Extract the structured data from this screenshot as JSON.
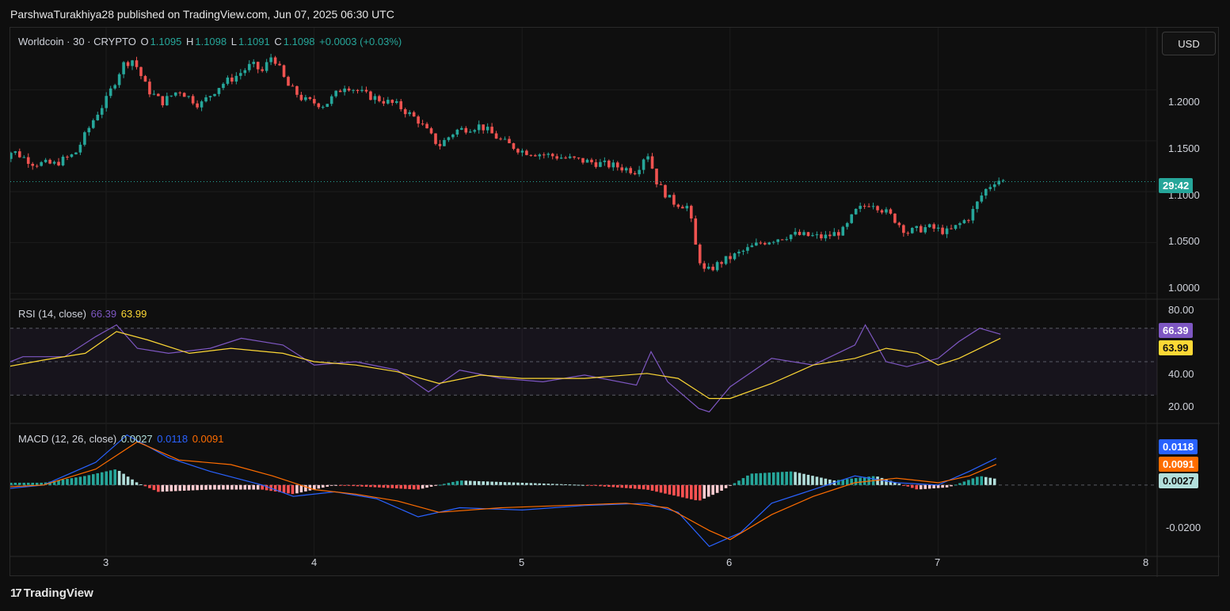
{
  "publish_line": "ParshwaTurakhiya28 published on TradingView.com, Jun 07, 2025 06:30 UTC",
  "currency": "USD",
  "legend": {
    "symbol": "Worldcoin · 30 · CRYPTO",
    "o_label": "O",
    "o_value": "1.1095",
    "h_label": "H",
    "h_value": "1.1098",
    "l_label": "L",
    "l_value": "1.1091",
    "c_label": "C",
    "c_value": "1.1098",
    "change": "+0.0003 (+0.03%)"
  },
  "countdown": "29:42",
  "rsi": {
    "label": "RSI (14, close)",
    "value": "66.39",
    "ma": "63.99"
  },
  "macd": {
    "label": "MACD (12, 26, close)",
    "hist": "0.0027",
    "macd": "0.0118",
    "signal": "0.0091"
  },
  "brand": "TradingView",
  "colors": {
    "up": "#26a69a",
    "down": "#ef5350",
    "rsi": "#7e57c2",
    "rsi_ma": "#fdd835",
    "macd": "#2962ff",
    "signal": "#ff6d00"
  },
  "chart_data": [
    {
      "type": "candlestick",
      "title": "Worldcoin · 30 · CRYPTO",
      "x_ticks": [
        "3",
        "4",
        "5",
        "6",
        "7",
        "8"
      ],
      "y_ticks": [
        "1.0000",
        "1.0500",
        "1.1000",
        "1.1500",
        "1.2000"
      ],
      "ylim": [
        0.995,
        1.255
      ],
      "last_price": 1.1098,
      "close_series_day": [
        [
          2.48,
          1.129
        ],
        [
          2.55,
          1.14
        ],
        [
          2.65,
          1.128
        ],
        [
          2.75,
          1.127
        ],
        [
          2.85,
          1.137
        ],
        [
          2.95,
          1.175
        ],
        [
          3.0,
          1.19
        ],
        [
          3.08,
          1.225
        ],
        [
          3.13,
          1.23
        ],
        [
          3.2,
          1.2
        ],
        [
          3.27,
          1.188
        ],
        [
          3.35,
          1.2
        ],
        [
          3.45,
          1.185
        ],
        [
          3.55,
          1.205
        ],
        [
          3.62,
          1.213
        ],
        [
          3.7,
          1.225
        ],
        [
          3.75,
          1.218
        ],
        [
          3.8,
          1.235
        ],
        [
          3.87,
          1.205
        ],
        [
          3.95,
          1.19
        ],
        [
          4.05,
          1.185
        ],
        [
          4.15,
          1.205
        ],
        [
          4.25,
          1.195
        ],
        [
          4.4,
          1.185
        ],
        [
          4.5,
          1.17
        ],
        [
          4.6,
          1.145
        ],
        [
          4.68,
          1.16
        ],
        [
          4.8,
          1.165
        ],
        [
          4.9,
          1.15
        ],
        [
          5.0,
          1.14
        ],
        [
          5.15,
          1.135
        ],
        [
          5.3,
          1.13
        ],
        [
          5.45,
          1.125
        ],
        [
          5.55,
          1.12
        ],
        [
          5.6,
          1.14
        ],
        [
          5.65,
          1.108
        ],
        [
          5.72,
          1.09
        ],
        [
          5.8,
          1.085
        ],
        [
          5.84,
          1.04
        ],
        [
          5.88,
          1.02
        ],
        [
          5.95,
          1.03
        ],
        [
          6.05,
          1.04
        ],
        [
          6.15,
          1.05
        ],
        [
          6.3,
          1.058
        ],
        [
          6.45,
          1.055
        ],
        [
          6.55,
          1.062
        ],
        [
          6.6,
          1.08
        ],
        [
          6.68,
          1.09
        ],
        [
          6.78,
          1.075
        ],
        [
          6.85,
          1.06
        ],
        [
          6.95,
          1.065
        ],
        [
          7.05,
          1.06
        ],
        [
          7.15,
          1.075
        ],
        [
          7.22,
          1.1
        ],
        [
          7.28,
          1.112
        ],
        [
          7.32,
          1.11
        ]
      ]
    },
    {
      "type": "line",
      "title": "RSI (14, close)",
      "y_ticks": [
        "20.00",
        "40.00",
        "80.00"
      ],
      "ylim": [
        15,
        85
      ],
      "bands": [
        30,
        50,
        70
      ],
      "series": [
        {
          "name": "RSI",
          "points": [
            [
              2.48,
              47
            ],
            [
              2.6,
              53
            ],
            [
              2.8,
              53
            ],
            [
              2.95,
              65
            ],
            [
              3.05,
              72
            ],
            [
              3.15,
              58
            ],
            [
              3.3,
              55
            ],
            [
              3.5,
              58
            ],
            [
              3.65,
              64
            ],
            [
              3.85,
              60
            ],
            [
              4.0,
              48
            ],
            [
              4.2,
              50
            ],
            [
              4.4,
              45
            ],
            [
              4.55,
              32
            ],
            [
              4.7,
              45
            ],
            [
              4.9,
              40
            ],
            [
              5.1,
              38
            ],
            [
              5.3,
              42
            ],
            [
              5.55,
              36
            ],
            [
              5.62,
              56
            ],
            [
              5.7,
              38
            ],
            [
              5.85,
              22
            ],
            [
              5.9,
              20
            ],
            [
              6.0,
              35
            ],
            [
              6.2,
              52
            ],
            [
              6.4,
              48
            ],
            [
              6.6,
              60
            ],
            [
              6.65,
              72
            ],
            [
              6.75,
              50
            ],
            [
              6.85,
              47
            ],
            [
              7.0,
              52
            ],
            [
              7.1,
              62
            ],
            [
              7.2,
              70
            ],
            [
              7.3,
              66.39
            ]
          ]
        },
        {
          "name": "RSI MA",
          "points": [
            [
              2.48,
              46
            ],
            [
              2.7,
              51
            ],
            [
              2.9,
              55
            ],
            [
              3.05,
              68
            ],
            [
              3.2,
              63
            ],
            [
              3.4,
              55
            ],
            [
              3.6,
              58
            ],
            [
              3.85,
              55
            ],
            [
              4.0,
              50
            ],
            [
              4.2,
              48
            ],
            [
              4.4,
              44
            ],
            [
              4.6,
              37
            ],
            [
              4.8,
              42
            ],
            [
              5.0,
              40
            ],
            [
              5.3,
              40
            ],
            [
              5.6,
              43
            ],
            [
              5.75,
              40
            ],
            [
              5.9,
              28
            ],
            [
              6.0,
              28
            ],
            [
              6.2,
              37
            ],
            [
              6.4,
              48
            ],
            [
              6.6,
              52
            ],
            [
              6.75,
              58
            ],
            [
              6.9,
              55
            ],
            [
              7.0,
              48
            ],
            [
              7.1,
              52
            ],
            [
              7.3,
              63.99
            ]
          ]
        }
      ]
    },
    {
      "type": "bar+line",
      "title": "MACD (12, 26, close)",
      "y_ticks": [
        "-0.0200"
      ],
      "ylim": [
        -0.03,
        0.025
      ],
      "series": [
        {
          "name": "MACD",
          "points": [
            [
              2.48,
              -0.002
            ],
            [
              2.7,
              0.0
            ],
            [
              2.95,
              0.01
            ],
            [
              3.1,
              0.022
            ],
            [
              3.3,
              0.012
            ],
            [
              3.5,
              0.006
            ],
            [
              3.75,
              0.0
            ],
            [
              3.9,
              -0.005
            ],
            [
              4.1,
              -0.003
            ],
            [
              4.3,
              -0.006
            ],
            [
              4.5,
              -0.014
            ],
            [
              4.7,
              -0.01
            ],
            [
              5.0,
              -0.011
            ],
            [
              5.3,
              -0.009
            ],
            [
              5.6,
              -0.008
            ],
            [
              5.75,
              -0.012
            ],
            [
              5.9,
              -0.027
            ],
            [
              6.05,
              -0.021
            ],
            [
              6.2,
              -0.008
            ],
            [
              6.4,
              -0.002
            ],
            [
              6.6,
              0.004
            ],
            [
              6.8,
              0.001
            ],
            [
              7.0,
              0.0
            ],
            [
              7.15,
              0.006
            ],
            [
              7.28,
              0.0118
            ]
          ]
        },
        {
          "name": "Signal",
          "points": [
            [
              2.48,
              -0.001
            ],
            [
              2.7,
              0.0
            ],
            [
              2.95,
              0.007
            ],
            [
              3.15,
              0.019
            ],
            [
              3.35,
              0.011
            ],
            [
              3.6,
              0.009
            ],
            [
              3.8,
              0.004
            ],
            [
              4.0,
              -0.002
            ],
            [
              4.2,
              -0.004
            ],
            [
              4.4,
              -0.007
            ],
            [
              4.6,
              -0.012
            ],
            [
              4.9,
              -0.01
            ],
            [
              5.2,
              -0.009
            ],
            [
              5.5,
              -0.008
            ],
            [
              5.7,
              -0.01
            ],
            [
              5.9,
              -0.02
            ],
            [
              6.0,
              -0.024
            ],
            [
              6.2,
              -0.013
            ],
            [
              6.4,
              -0.005
            ],
            [
              6.6,
              0.001
            ],
            [
              6.8,
              0.003
            ],
            [
              7.0,
              0.001
            ],
            [
              7.15,
              0.004
            ],
            [
              7.28,
              0.0091
            ]
          ]
        }
      ],
      "histogram": [
        [
          2.48,
          0.001
        ],
        [
          2.7,
          0.001
        ],
        [
          2.9,
          0.004
        ],
        [
          3.05,
          0.007
        ],
        [
          3.15,
          0.001
        ],
        [
          3.25,
          -0.003
        ],
        [
          3.5,
          -0.002
        ],
        [
          3.75,
          -0.002
        ],
        [
          3.9,
          -0.004
        ],
        [
          4.1,
          0.0
        ],
        [
          4.5,
          -0.002
        ],
        [
          4.7,
          0.002
        ],
        [
          5.0,
          0.001
        ],
        [
          5.3,
          0.0
        ],
        [
          5.6,
          -0.002
        ],
        [
          5.85,
          -0.007
        ],
        [
          5.95,
          -0.003
        ],
        [
          6.1,
          0.005
        ],
        [
          6.3,
          0.006
        ],
        [
          6.5,
          0.002
        ],
        [
          6.7,
          0.004
        ],
        [
          6.9,
          -0.002
        ],
        [
          7.05,
          -0.001
        ],
        [
          7.2,
          0.004
        ],
        [
          7.28,
          0.0027
        ]
      ]
    }
  ]
}
